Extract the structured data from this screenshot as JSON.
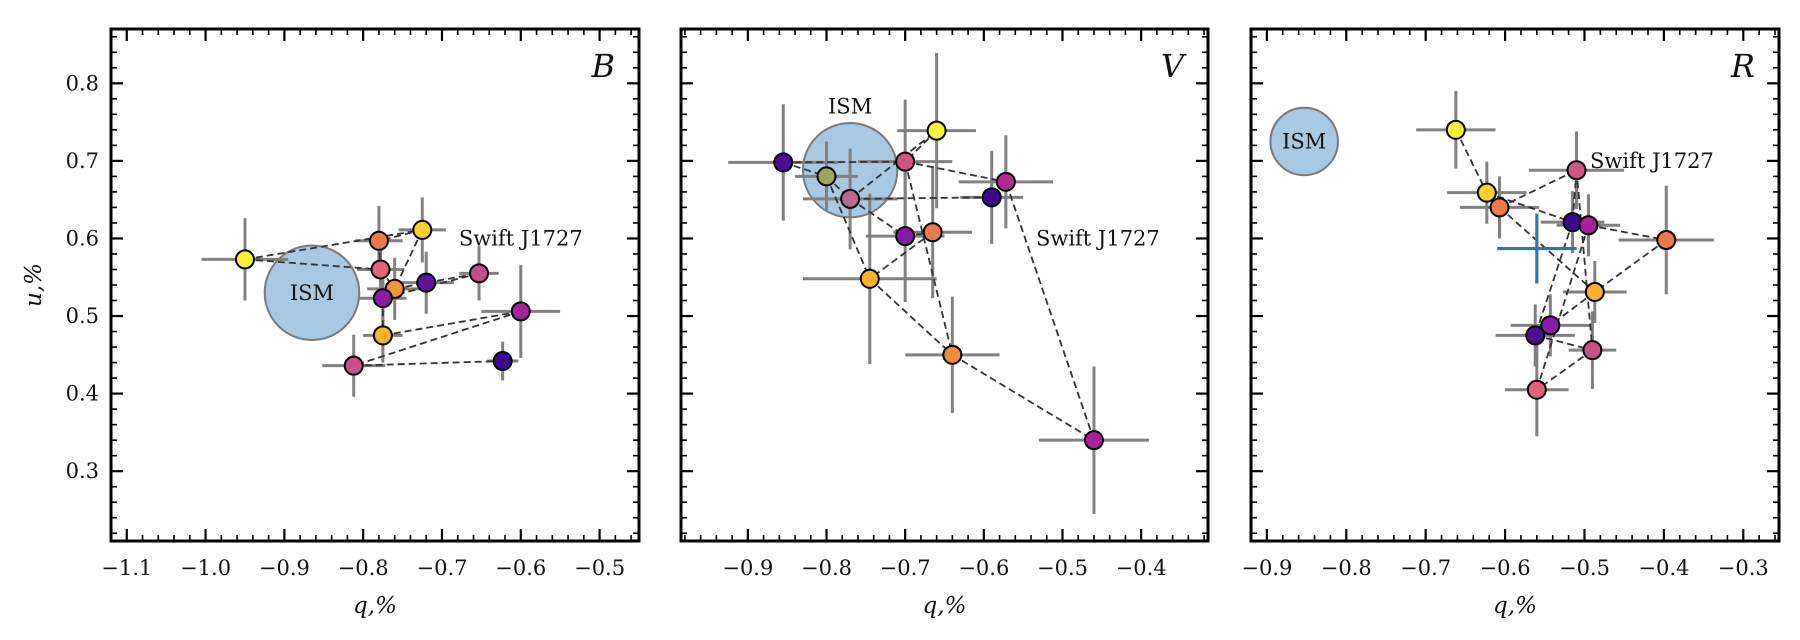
{
  "chart_data": [
    {
      "type": "scatter",
      "band": "B",
      "xlabel": "q,%",
      "ylabel": "u,%",
      "xlim": [
        -1.12,
        -0.45
      ],
      "ylim": [
        0.21,
        0.87
      ],
      "xticks": [
        -1.1,
        -1.0,
        -0.9,
        -0.8,
        -0.7,
        -0.6,
        -0.5
      ],
      "xtick_labels": [
        "−1.1",
        "−1.0",
        "−0.9",
        "−0.8",
        "−0.7",
        "−0.6",
        "−0.5"
      ],
      "yticks": [
        0.3,
        0.4,
        0.5,
        0.6,
        0.7,
        0.8
      ],
      "ytick_labels": [
        "0.3",
        "0.4",
        "0.5",
        "0.6",
        "0.7",
        "0.8"
      ],
      "source_label": "Swift J1727",
      "source_label_pos": [
        -0.6,
        0.6
      ],
      "ism": {
        "label": "ISM",
        "q": -0.865,
        "u": 0.53,
        "radius": 0.06
      },
      "points": [
        {
          "q": -0.95,
          "u": 0.573,
          "xerr": 0.055,
          "yerr": 0.053,
          "color": "#f8f43a"
        },
        {
          "q": -0.725,
          "u": 0.611,
          "xerr": 0.03,
          "yerr": 0.042,
          "color": "#fbd02a"
        },
        {
          "q": -0.78,
          "u": 0.597,
          "xerr": 0.03,
          "yerr": 0.045,
          "color": "#ec7b4a"
        },
        {
          "q": -0.778,
          "u": 0.56,
          "xerr": 0.03,
          "yerr": 0.04,
          "color": "#e2637b"
        },
        {
          "q": -0.76,
          "u": 0.535,
          "xerr": 0.035,
          "yerr": 0.04,
          "color": "#f79338"
        },
        {
          "q": -0.72,
          "u": 0.543,
          "xerr": 0.035,
          "yerr": 0.04,
          "color": "#5c1596"
        },
        {
          "q": -0.653,
          "u": 0.555,
          "xerr": 0.025,
          "yerr": 0.035,
          "color": "#c64c86"
        },
        {
          "q": -0.775,
          "u": 0.523,
          "xerr": 0.03,
          "yerr": 0.04,
          "color": "#8a1aa8"
        },
        {
          "q": -0.775,
          "u": 0.475,
          "xerr": 0.025,
          "yerr": 0.035,
          "color": "#fcb02c"
        },
        {
          "q": -0.6,
          "u": 0.506,
          "xerr": 0.05,
          "yerr": 0.06,
          "color": "#a7229a"
        },
        {
          "q": -0.812,
          "u": 0.436,
          "xerr": 0.04,
          "yerr": 0.04,
          "color": "#cc5088"
        },
        {
          "q": -0.623,
          "u": 0.442,
          "xerr": 0.02,
          "yerr": 0.025,
          "color": "#3b0a8c"
        }
      ],
      "links": [
        [
          0,
          1
        ],
        [
          1,
          2
        ],
        [
          2,
          3
        ],
        [
          3,
          4
        ],
        [
          4,
          5
        ],
        [
          5,
          6
        ],
        [
          6,
          7
        ],
        [
          7,
          8
        ],
        [
          8,
          9
        ],
        [
          9,
          10
        ],
        [
          10,
          11
        ],
        [
          1,
          4
        ],
        [
          0,
          3
        ]
      ]
    },
    {
      "type": "scatter",
      "band": "V",
      "xlabel": "q,%",
      "ylabel": "",
      "xlim": [
        -0.985,
        -0.315
      ],
      "ylim": [
        0.21,
        0.87
      ],
      "xticks": [
        -0.9,
        -0.8,
        -0.7,
        -0.6,
        -0.5,
        -0.4
      ],
      "xtick_labels": [
        "−0.9",
        "−0.8",
        "−0.7",
        "−0.6",
        "−0.5",
        "−0.4"
      ],
      "yticks": [
        0.3,
        0.4,
        0.5,
        0.6,
        0.7,
        0.8
      ],
      "ytick_labels": [],
      "source_label": "Swift J1727",
      "source_label_pos": [
        -0.455,
        0.6
      ],
      "ism": {
        "label": "ISM",
        "q": -0.77,
        "u": 0.688,
        "radius": 0.06,
        "label_u": 0.77
      },
      "points": [
        {
          "q": -0.855,
          "u": 0.698,
          "xerr": 0.07,
          "yerr": 0.075,
          "color": "#4c0f93"
        },
        {
          "q": -0.8,
          "u": 0.68,
          "xerr": 0.04,
          "yerr": 0.045,
          "color": "#9aa85a"
        },
        {
          "q": -0.77,
          "u": 0.651,
          "xerr": 0.06,
          "yerr": 0.065,
          "color": "#b66a90"
        },
        {
          "q": -0.66,
          "u": 0.739,
          "xerr": 0.05,
          "yerr": 0.1,
          "color": "#f8f43a"
        },
        {
          "q": -0.7,
          "u": 0.699,
          "xerr": 0.06,
          "yerr": 0.08,
          "color": "#cf5582"
        },
        {
          "q": -0.572,
          "u": 0.673,
          "xerr": 0.06,
          "yerr": 0.06,
          "color": "#b02c8f"
        },
        {
          "q": -0.59,
          "u": 0.653,
          "xerr": 0.04,
          "yerr": 0.06,
          "color": "#3b0a8c"
        },
        {
          "q": -0.7,
          "u": 0.603,
          "xerr": 0.05,
          "yerr": 0.085,
          "color": "#8a1aa8"
        },
        {
          "q": -0.665,
          "u": 0.608,
          "xerr": 0.05,
          "yerr": 0.085,
          "color": "#ec7b4a"
        },
        {
          "q": -0.745,
          "u": 0.548,
          "xerr": 0.085,
          "yerr": 0.11,
          "color": "#fcb02c"
        },
        {
          "q": -0.64,
          "u": 0.45,
          "xerr": 0.06,
          "yerr": 0.075,
          "color": "#f28a3c"
        },
        {
          "q": -0.46,
          "u": 0.34,
          "xerr": 0.07,
          "yerr": 0.095,
          "color": "#a7229a"
        }
      ],
      "links": [
        [
          0,
          1
        ],
        [
          1,
          2
        ],
        [
          2,
          3
        ],
        [
          3,
          4
        ],
        [
          4,
          5
        ],
        [
          5,
          6
        ],
        [
          6,
          2
        ],
        [
          2,
          7
        ],
        [
          7,
          8
        ],
        [
          8,
          9
        ],
        [
          9,
          10
        ],
        [
          10,
          11
        ],
        [
          11,
          5
        ],
        [
          0,
          4
        ],
        [
          1,
          9
        ],
        [
          4,
          10
        ]
      ]
    },
    {
      "type": "scatter",
      "band": "R",
      "xlabel": "q,%",
      "ylabel": "",
      "xlim": [
        -0.92,
        -0.255
      ],
      "ylim": [
        0.21,
        0.87
      ],
      "xticks": [
        -0.9,
        -0.8,
        -0.7,
        -0.6,
        -0.5,
        -0.4,
        -0.3
      ],
      "xtick_labels": [
        "−0.9",
        "−0.8",
        "−0.7",
        "−0.6",
        "−0.5",
        "−0.4",
        "−0.3"
      ],
      "yticks": [
        0.3,
        0.4,
        0.5,
        0.6,
        0.7,
        0.8
      ],
      "ytick_labels": [],
      "source_label": "Swift J1727",
      "source_label_pos": [
        -0.415,
        0.7
      ],
      "ism": {
        "label": "ISM",
        "q": -0.853,
        "u": 0.725,
        "radius": 0.0425
      },
      "mean_marker": {
        "q": -0.56,
        "u": 0.587,
        "xerr": 0.05,
        "yerr": 0.045,
        "color": "#2f77b4"
      },
      "points": [
        {
          "q": -0.662,
          "u": 0.74,
          "xerr": 0.05,
          "yerr": 0.05,
          "color": "#f8f43a"
        },
        {
          "q": -0.623,
          "u": 0.659,
          "xerr": 0.05,
          "yerr": 0.04,
          "color": "#fbd02a"
        },
        {
          "q": -0.607,
          "u": 0.64,
          "xerr": 0.05,
          "yerr": 0.04,
          "color": "#ec7b4a"
        },
        {
          "q": -0.51,
          "u": 0.688,
          "xerr": 0.06,
          "yerr": 0.05,
          "color": "#cf5582"
        },
        {
          "q": -0.515,
          "u": 0.621,
          "xerr": 0.04,
          "yerr": 0.04,
          "color": "#3b0a8c"
        },
        {
          "q": -0.495,
          "u": 0.617,
          "xerr": 0.04,
          "yerr": 0.04,
          "color": "#a7229a"
        },
        {
          "q": -0.397,
          "u": 0.598,
          "xerr": 0.06,
          "yerr": 0.07,
          "color": "#ec7b4a"
        },
        {
          "q": -0.487,
          "u": 0.531,
          "xerr": 0.04,
          "yerr": 0.04,
          "color": "#fcb02c"
        },
        {
          "q": -0.543,
          "u": 0.488,
          "xerr": 0.05,
          "yerr": 0.04,
          "color": "#8a1aa8"
        },
        {
          "q": -0.562,
          "u": 0.475,
          "xerr": 0.05,
          "yerr": 0.04,
          "color": "#4c0f93"
        },
        {
          "q": -0.49,
          "u": 0.456,
          "xerr": 0.03,
          "yerr": 0.05,
          "color": "#cc5088"
        },
        {
          "q": -0.56,
          "u": 0.405,
          "xerr": 0.04,
          "yerr": 0.06,
          "color": "#e2637b"
        }
      ],
      "links": [
        [
          0,
          1
        ],
        [
          1,
          2
        ],
        [
          2,
          3
        ],
        [
          3,
          4
        ],
        [
          4,
          5
        ],
        [
          5,
          6
        ],
        [
          6,
          7
        ],
        [
          7,
          8
        ],
        [
          8,
          9
        ],
        [
          9,
          10
        ],
        [
          10,
          11
        ],
        [
          11,
          5
        ],
        [
          1,
          4
        ],
        [
          3,
          10
        ],
        [
          2,
          7
        ],
        [
          4,
          9
        ]
      ]
    }
  ]
}
